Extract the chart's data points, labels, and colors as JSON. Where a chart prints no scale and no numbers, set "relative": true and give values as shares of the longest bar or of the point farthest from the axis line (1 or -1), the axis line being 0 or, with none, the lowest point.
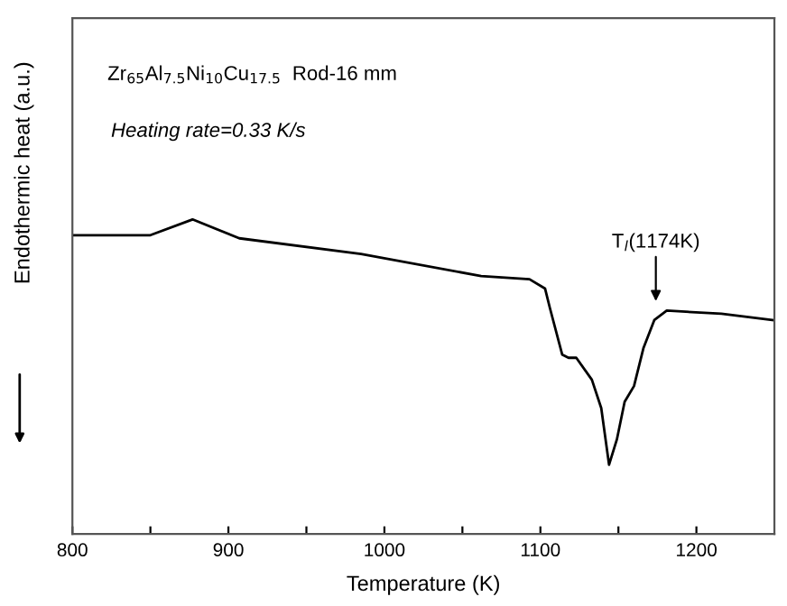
{
  "chart_data": {
    "type": "line",
    "relative": true,
    "xlabel": "Temperature (K)",
    "ylabel": "Endothermic heat (a.u.)",
    "x": [
      800,
      850,
      877,
      907,
      985,
      1062,
      1093,
      1103,
      1106,
      1114,
      1118,
      1123,
      1133,
      1139,
      1144,
      1149,
      1154,
      1160,
      1166,
      1173,
      1181,
      1216,
      1249
    ],
    "series": [
      {
        "color": "#000000",
        "values": [
          0.95,
          0.95,
          1.0,
          0.94,
          0.89,
          0.82,
          0.81,
          0.78,
          0.72,
          0.57,
          0.56,
          0.56,
          0.49,
          0.4,
          0.22,
          0.3,
          0.42,
          0.47,
          0.59,
          0.68,
          0.71,
          0.7,
          0.68
        ]
      }
    ],
    "xlim": [
      800,
      1250
    ],
    "xticks": [
      800,
      {
        "value": 850,
        "label": null
      },
      900,
      {
        "value": 950,
        "label": null
      },
      1000,
      {
        "value": 1050,
        "label": null
      },
      1100,
      {
        "value": 1150,
        "label": null
      },
      1200
    ],
    "tick_labels": "x",
    "grid": false,
    "legend": false,
    "marker": "none",
    "line_style": "solid",
    "annotations": [
      "Zr$_{65}$Al$_{7.5}$Ni$_{10}$Cu$_{17.5}$  Rod-16 mm",
      "Heating rate=0.33 K/s",
      {
        "text": "T$_{l}$(1174K)",
        "x": 1174,
        "y": 0.71
      }
    ]
  }
}
